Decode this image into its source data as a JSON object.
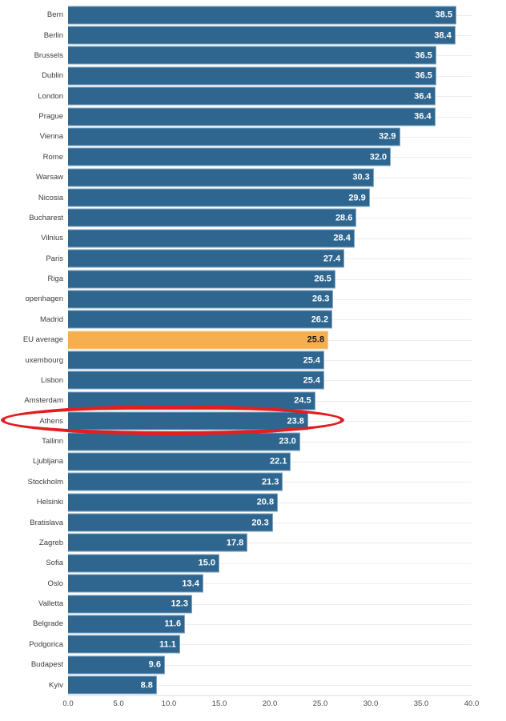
{
  "chart_data": {
    "type": "bar",
    "orientation": "horizontal",
    "title": "",
    "xlabel": "",
    "ylabel": "",
    "categories": [
      "Bern",
      "Berlin",
      "Brussels",
      "Dublin",
      "London",
      "Prague",
      "Vienna",
      "Rome",
      "Warsaw",
      "Nicosia",
      "Bucharest",
      "Vilnius",
      "Paris",
      "Riga",
      "openhagen",
      "Madrid",
      "EU average",
      "uxembourg",
      "Lisbon",
      "Amsterdam",
      "Athens",
      "Tallinn",
      "Ljubljana",
      "Stockholm",
      "Helsinki",
      "Bratislava",
      "Zagreb",
      "Sofia",
      "Oslo",
      "Valletta",
      "Belgrade",
      "Podgorica",
      "Budapest",
      "Kyiv"
    ],
    "values": [
      38.5,
      38.4,
      36.5,
      36.5,
      36.4,
      36.4,
      32.9,
      32.0,
      30.3,
      29.9,
      28.6,
      28.4,
      27.4,
      26.5,
      26.3,
      26.2,
      25.8,
      25.4,
      25.4,
      24.5,
      23.8,
      23.0,
      22.1,
      21.3,
      20.8,
      20.3,
      17.8,
      15.0,
      13.4,
      12.3,
      11.6,
      11.1,
      9.6,
      8.8
    ],
    "value_labels": [
      "38.5",
      "38.4",
      "36.5",
      "36.5",
      "36.4",
      "36.4",
      "32.9",
      "32.0",
      "30.3",
      "29.9",
      "28.6",
      "28.4",
      "27.4",
      "26.5",
      "26.3",
      "26.2",
      "25.8",
      "25.4",
      "25.4",
      "24.5",
      "23.8",
      "23.0",
      "22.1",
      "21.3",
      "20.8",
      "20.3",
      "17.8",
      "15.0",
      "13.4",
      "12.3",
      "11.6",
      "11.1",
      "9.6",
      "8.8"
    ],
    "xlim": [
      0,
      40
    ],
    "x_ticks": [
      "0.0",
      "5.0",
      "10.0",
      "15.0",
      "20.0",
      "25.0",
      "30.0",
      "35.0",
      "40.0"
    ],
    "grid": true,
    "legend": "none",
    "bar_color": "#2f6690",
    "bar_edge_color": "#7fa6c3",
    "highlight_bar": {
      "index": 16,
      "label": "EU average",
      "color": "#f6ae4e",
      "value_text_color": "#1a1a1a"
    },
    "annotation": {
      "shape": "ellipse",
      "target": "Athens",
      "target_index": 20,
      "color": "#e11f1f"
    }
  }
}
